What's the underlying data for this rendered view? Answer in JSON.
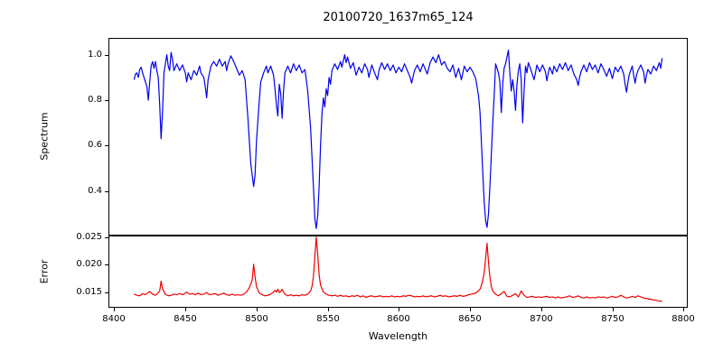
{
  "chart_data": {
    "type": "line",
    "title": "20100720_1637m65_124",
    "xlabel": "Wavelength",
    "grid": false,
    "legend": "none",
    "xlim": [
      8396,
      8803
    ],
    "xticks": [
      8400,
      8450,
      8500,
      8550,
      8600,
      8650,
      8700,
      8750,
      8800
    ],
    "xticklabels": [
      "8400",
      "8450",
      "8500",
      "8550",
      "8600",
      "8650",
      "8700",
      "8750",
      "8800"
    ],
    "panels": [
      {
        "name": "spectrum",
        "ylabel": "Spectrum",
        "color": "#0000ee",
        "ylim": [
          0.204,
          1.074
        ],
        "yticks": [
          1.0,
          0.8,
          0.6,
          0.4
        ],
        "yticklabels": [
          "1.0",
          "0.8",
          "0.6",
          "0.4"
        ],
        "x": [
          8414,
          8415,
          8416,
          8417,
          8418,
          8419,
          8420,
          8421,
          8422,
          8423,
          8424,
          8425,
          8426,
          8427,
          8428,
          8429,
          8430,
          8431,
          8432,
          8433,
          8434,
          8435,
          8436,
          8437,
          8438,
          8439,
          8440,
          8441,
          8442,
          8444,
          8446,
          8448,
          8450,
          8451,
          8452,
          8454,
          8456,
          8458,
          8460,
          8461,
          8463,
          8464,
          8465,
          8466,
          8468,
          8470,
          8472,
          8474,
          8476,
          8478,
          8479,
          8480,
          8482,
          8484,
          8486,
          8488,
          8490,
          8492,
          8494,
          8496,
          8498,
          8499,
          8500,
          8502,
          8503,
          8505,
          8507,
          8508,
          8510,
          8512,
          8513,
          8514,
          8515,
          8516,
          8517,
          8518,
          8519,
          8520,
          8522,
          8524,
          8526,
          8528,
          8530,
          8532,
          8534,
          8535,
          8536,
          8538,
          8540,
          8541,
          8542,
          8543,
          8544,
          8545,
          8546,
          8547,
          8548,
          8549,
          8550,
          8551,
          8552,
          8553,
          8555,
          8557,
          8559,
          8560,
          8562,
          8563,
          8564,
          8566,
          8568,
          8570,
          8572,
          8574,
          8576,
          8578,
          8579,
          8581,
          8583,
          8585,
          8586,
          8588,
          8590,
          8592,
          8594,
          8596,
          8598,
          8600,
          8602,
          8604,
          8606,
          8608,
          8609,
          8611,
          8613,
          8615,
          8617,
          8619,
          8620,
          8622,
          8624,
          8626,
          8628,
          8630,
          8632,
          8634,
          8636,
          8638,
          8640,
          8642,
          8644,
          8646,
          8648,
          8650,
          8652,
          8654,
          8656,
          8657,
          8658,
          8659,
          8660,
          8661,
          8662,
          8663,
          8664,
          8665,
          8666,
          8667,
          8668,
          8669,
          8670,
          8671,
          8672,
          8673,
          8674,
          8675,
          8676,
          8677,
          8678,
          8679,
          8680,
          8681,
          8682,
          8683,
          8684,
          8685,
          8686,
          8687,
          8688,
          8689,
          8690,
          8691,
          8693,
          8695,
          8696,
          8697,
          8699,
          8701,
          8703,
          8704,
          8705,
          8706,
          8708,
          8709,
          8711,
          8713,
          8715,
          8717,
          8719,
          8721,
          8723,
          8725,
          8726,
          8727,
          8728,
          8730,
          8732,
          8734,
          8736,
          8738,
          8740,
          8742,
          8744,
          8746,
          8748,
          8750,
          8751,
          8752,
          8754,
          8756,
          8758,
          8759,
          8760,
          8761,
          8762,
          8764,
          8765,
          8766,
          8767,
          8768,
          8770,
          8772,
          8773,
          8774,
          8775,
          8777,
          8779,
          8781,
          8783,
          8784,
          8785
        ],
        "y": [
          0.89,
          0.915,
          0.92,
          0.9,
          0.935,
          0.945,
          0.92,
          0.9,
          0.88,
          0.86,
          0.8,
          0.88,
          0.95,
          0.97,
          0.94,
          0.97,
          0.93,
          0.9,
          0.78,
          0.63,
          0.75,
          0.92,
          0.96,
          1.0,
          0.95,
          0.93,
          1.01,
          0.98,
          0.93,
          0.96,
          0.93,
          0.955,
          0.92,
          0.88,
          0.92,
          0.89,
          0.93,
          0.91,
          0.95,
          0.92,
          0.9,
          0.86,
          0.81,
          0.89,
          0.95,
          0.97,
          0.95,
          0.98,
          0.95,
          0.97,
          0.93,
          0.96,
          0.995,
          0.97,
          0.94,
          0.91,
          0.93,
          0.89,
          0.72,
          0.52,
          0.42,
          0.47,
          0.62,
          0.8,
          0.88,
          0.92,
          0.95,
          0.92,
          0.95,
          0.91,
          0.85,
          0.78,
          0.73,
          0.87,
          0.83,
          0.72,
          0.84,
          0.92,
          0.95,
          0.92,
          0.96,
          0.93,
          0.955,
          0.92,
          0.935,
          0.89,
          0.84,
          0.68,
          0.42,
          0.28,
          0.235,
          0.29,
          0.42,
          0.6,
          0.74,
          0.81,
          0.77,
          0.85,
          0.82,
          0.9,
          0.87,
          0.93,
          0.96,
          0.935,
          0.97,
          0.945,
          1.0,
          0.965,
          0.99,
          0.94,
          0.965,
          0.91,
          0.945,
          0.92,
          0.96,
          0.935,
          0.9,
          0.955,
          0.92,
          0.89,
          0.93,
          0.965,
          0.935,
          0.96,
          0.93,
          0.955,
          0.92,
          0.945,
          0.925,
          0.96,
          0.93,
          0.9,
          0.875,
          0.93,
          0.955,
          0.925,
          0.96,
          0.93,
          0.915,
          0.965,
          0.99,
          0.965,
          1.0,
          0.955,
          0.97,
          0.94,
          0.925,
          0.955,
          0.9,
          0.94,
          0.89,
          0.95,
          0.925,
          0.945,
          0.925,
          0.895,
          0.82,
          0.75,
          0.62,
          0.48,
          0.35,
          0.27,
          0.24,
          0.3,
          0.42,
          0.56,
          0.7,
          0.82,
          0.96,
          0.94,
          0.92,
          0.88,
          0.745,
          0.87,
          0.94,
          0.96,
          0.99,
          1.02,
          0.92,
          0.84,
          0.89,
          0.84,
          0.755,
          0.87,
          0.93,
          0.96,
          0.89,
          0.7,
          0.84,
          0.95,
          0.92,
          0.965,
          0.93,
          0.89,
          0.92,
          0.955,
          0.925,
          0.955,
          0.925,
          0.885,
          0.92,
          0.945,
          0.915,
          0.95,
          0.925,
          0.96,
          0.935,
          0.965,
          0.93,
          0.955,
          0.915,
          0.89,
          0.865,
          0.9,
          0.925,
          0.955,
          0.925,
          0.965,
          0.935,
          0.955,
          0.92,
          0.96,
          0.935,
          0.905,
          0.94,
          0.895,
          0.92,
          0.945,
          0.925,
          0.95,
          0.915,
          0.87,
          0.835,
          0.88,
          0.915,
          0.95,
          0.91,
          0.875,
          0.91,
          0.93,
          0.955,
          0.925,
          0.875,
          0.91,
          0.935,
          0.915,
          0.95,
          0.93,
          0.965,
          0.94,
          0.985
        ]
      },
      {
        "name": "error",
        "ylabel": "Error",
        "color": "#ee0000",
        "ylim": [
          0.0121,
          0.0254
        ],
        "yticks": [
          0.025,
          0.02,
          0.015
        ],
        "yticklabels": [
          "0.025",
          "0.020",
          "0.015"
        ],
        "x": [
          8414,
          8416,
          8418,
          8420,
          8422,
          8424,
          8425,
          8427,
          8429,
          8430,
          8432,
          8433,
          8434,
          8436,
          8438,
          8440,
          8442,
          8444,
          8446,
          8448,
          8450,
          8451,
          8453,
          8455,
          8457,
          8459,
          8461,
          8463,
          8465,
          8467,
          8469,
          8471,
          8473,
          8475,
          8477,
          8479,
          8481,
          8483,
          8485,
          8487,
          8489,
          8491,
          8493,
          8495,
          8497,
          8498,
          8499,
          8500,
          8502,
          8504,
          8506,
          8508,
          8510,
          8512,
          8513,
          8514,
          8515,
          8516,
          8517,
          8518,
          8520,
          8522,
          8524,
          8526,
          8528,
          8530,
          8532,
          8534,
          8536,
          8538,
          8539,
          8540,
          8541,
          8542,
          8543,
          8544,
          8545,
          8547,
          8549,
          8551,
          8553,
          8555,
          8557,
          8559,
          8561,
          8563,
          8565,
          8567,
          8569,
          8571,
          8573,
          8575,
          8577,
          8579,
          8581,
          8583,
          8585,
          8587,
          8589,
          8591,
          8593,
          8595,
          8597,
          8599,
          8601,
          8603,
          8605,
          8607,
          8609,
          8611,
          8613,
          8615,
          8617,
          8619,
          8621,
          8623,
          8625,
          8627,
          8629,
          8631,
          8633,
          8635,
          8637,
          8639,
          8641,
          8643,
          8645,
          8647,
          8649,
          8651,
          8653,
          8655,
          8657,
          8658,
          8659,
          8660,
          8661,
          8662,
          8663,
          8664,
          8665,
          8666,
          8668,
          8670,
          8672,
          8674,
          8676,
          8678,
          8680,
          8682,
          8684,
          8686,
          8688,
          8690,
          8692,
          8694,
          8696,
          8698,
          8700,
          8702,
          8704,
          8706,
          8708,
          8710,
          8712,
          8714,
          8716,
          8718,
          8720,
          8722,
          8724,
          8726,
          8728,
          8730,
          8732,
          8734,
          8736,
          8738,
          8740,
          8742,
          8744,
          8746,
          8748,
          8750,
          8752,
          8754,
          8756,
          8758,
          8760,
          8762,
          8764,
          8766,
          8768,
          8770,
          8772,
          8774,
          8776,
          8778,
          8780,
          8782,
          8784,
          8785
        ],
        "y": [
          0.0146,
          0.0144,
          0.0143,
          0.0147,
          0.0145,
          0.0149,
          0.0151,
          0.0146,
          0.0144,
          0.0146,
          0.0152,
          0.017,
          0.0156,
          0.0146,
          0.0143,
          0.0144,
          0.0146,
          0.0145,
          0.0147,
          0.0145,
          0.0148,
          0.015,
          0.0146,
          0.0147,
          0.0145,
          0.0148,
          0.0145,
          0.0146,
          0.0149,
          0.0145,
          0.0146,
          0.0147,
          0.0144,
          0.0146,
          0.0148,
          0.0145,
          0.0144,
          0.0146,
          0.0144,
          0.0145,
          0.0144,
          0.0146,
          0.015,
          0.0158,
          0.0172,
          0.0201,
          0.0178,
          0.016,
          0.0148,
          0.0145,
          0.0143,
          0.0144,
          0.0146,
          0.015,
          0.0153,
          0.015,
          0.0155,
          0.0149,
          0.0151,
          0.0155,
          0.0146,
          0.0143,
          0.0145,
          0.0143,
          0.0144,
          0.0143,
          0.0145,
          0.0144,
          0.0146,
          0.0152,
          0.016,
          0.0178,
          0.0215,
          0.0251,
          0.022,
          0.0182,
          0.0163,
          0.015,
          0.0146,
          0.0144,
          0.0143,
          0.0144,
          0.0142,
          0.0144,
          0.0142,
          0.0143,
          0.0141,
          0.0143,
          0.0142,
          0.0144,
          0.0141,
          0.0143,
          0.014,
          0.0142,
          0.0143,
          0.0141,
          0.0142,
          0.0143,
          0.0141,
          0.0142,
          0.0141,
          0.0143,
          0.0141,
          0.0142,
          0.0141,
          0.0143,
          0.0142,
          0.0144,
          0.0143,
          0.0141,
          0.0142,
          0.0141,
          0.0143,
          0.0141,
          0.0142,
          0.0143,
          0.0141,
          0.0142,
          0.0144,
          0.0142,
          0.0143,
          0.0141,
          0.0142,
          0.0143,
          0.0142,
          0.0144,
          0.0142,
          0.0143,
          0.0145,
          0.0146,
          0.0147,
          0.015,
          0.0155,
          0.0162,
          0.0172,
          0.0186,
          0.0212,
          0.024,
          0.0205,
          0.0178,
          0.016,
          0.0152,
          0.0146,
          0.0143,
          0.0147,
          0.0151,
          0.0142,
          0.0141,
          0.0144,
          0.0147,
          0.0141,
          0.0152,
          0.0144,
          0.014,
          0.0141,
          0.0142,
          0.014,
          0.0141,
          0.014,
          0.0141,
          0.0142,
          0.014,
          0.0141,
          0.0139,
          0.0141,
          0.0139,
          0.014,
          0.0141,
          0.0143,
          0.014,
          0.0141,
          0.0143,
          0.014,
          0.0139,
          0.0141,
          0.0139,
          0.014,
          0.0139,
          0.0141,
          0.014,
          0.0141,
          0.0139,
          0.014,
          0.0142,
          0.014,
          0.0141,
          0.0144,
          0.0141,
          0.0139,
          0.014,
          0.0142,
          0.014,
          0.0143,
          0.0141,
          0.0139,
          0.0138,
          0.0137,
          0.0136,
          0.0135,
          0.0134,
          0.0133,
          0.0133
        ]
      }
    ]
  }
}
